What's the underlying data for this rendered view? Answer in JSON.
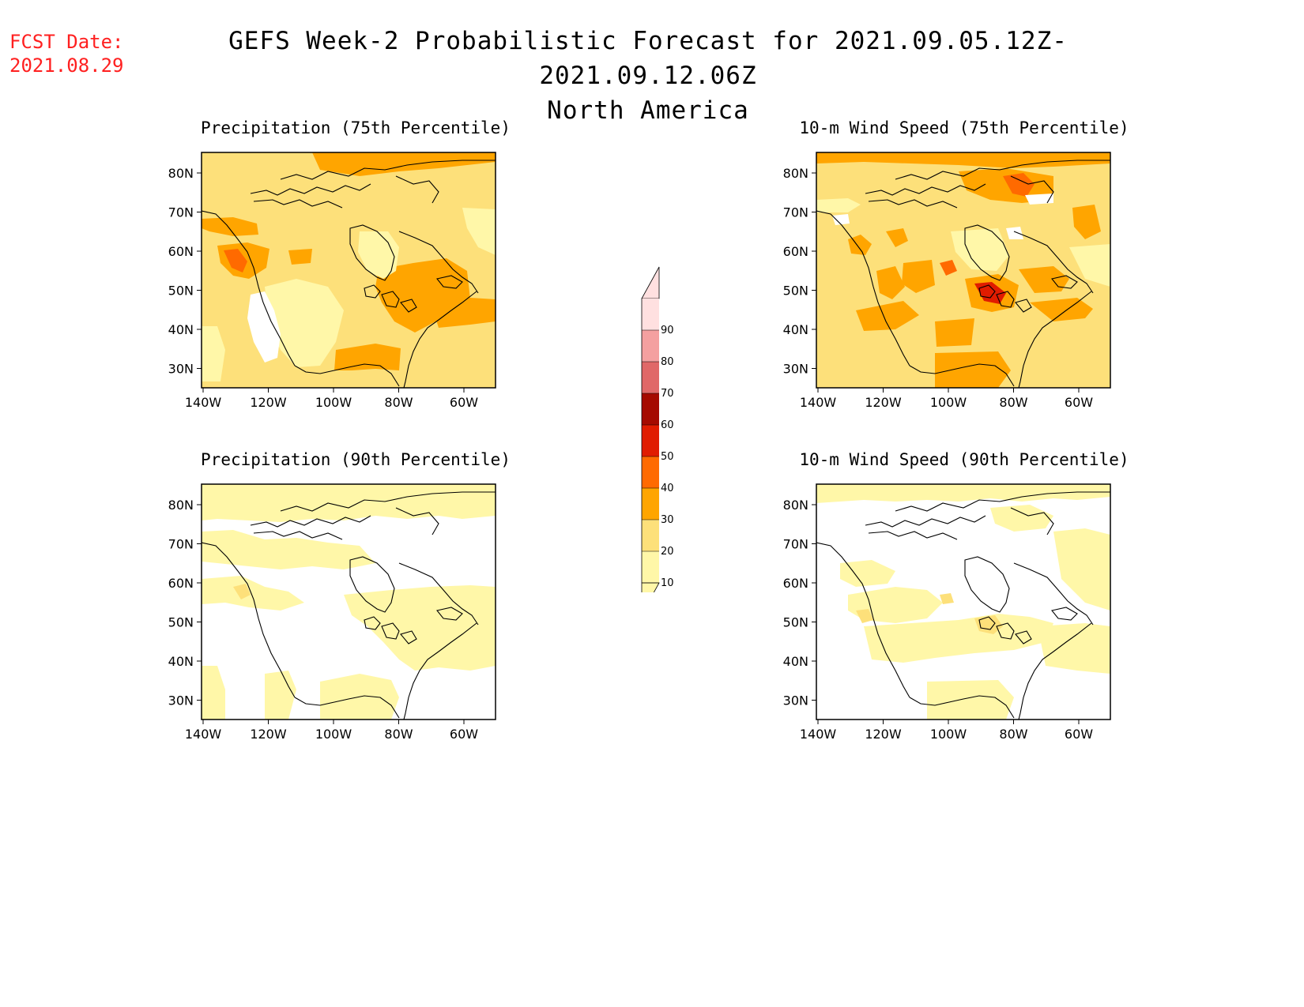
{
  "fcst": {
    "label": "FCST Date:",
    "date": "2021.08.29"
  },
  "title": {
    "line1": "GEFS Week-2 Probabilistic Forecast for 2021.09.05.12Z-2021.09.12.06Z",
    "line2": "North America"
  },
  "panels": [
    {
      "id": "precip75",
      "title": "Precipitation (75th Percentile)"
    },
    {
      "id": "wind75",
      "title": "10-m Wind Speed (75th Percentile)"
    },
    {
      "id": "precip90",
      "title": "Precipitation (90th Percentile)"
    },
    {
      "id": "wind90",
      "title": "10-m Wind Speed (90th Percentile)"
    }
  ],
  "axes": {
    "lat_ticks": [
      "80N",
      "70N",
      "60N",
      "50N",
      "40N",
      "30N"
    ],
    "lon_ticks": [
      "140W",
      "120W",
      "100W",
      "80W",
      "60W"
    ]
  },
  "colorbar": {
    "levels": [
      "10",
      "20",
      "30",
      "40",
      "50",
      "60",
      "70",
      "80",
      "90"
    ],
    "colors": [
      "#fff7a8",
      "#fde07a",
      "#ffa500",
      "#ff6a00",
      "#e01c00",
      "#a50a00",
      "#e06868",
      "#f4a0a0",
      "#ffe0e0"
    ]
  }
}
